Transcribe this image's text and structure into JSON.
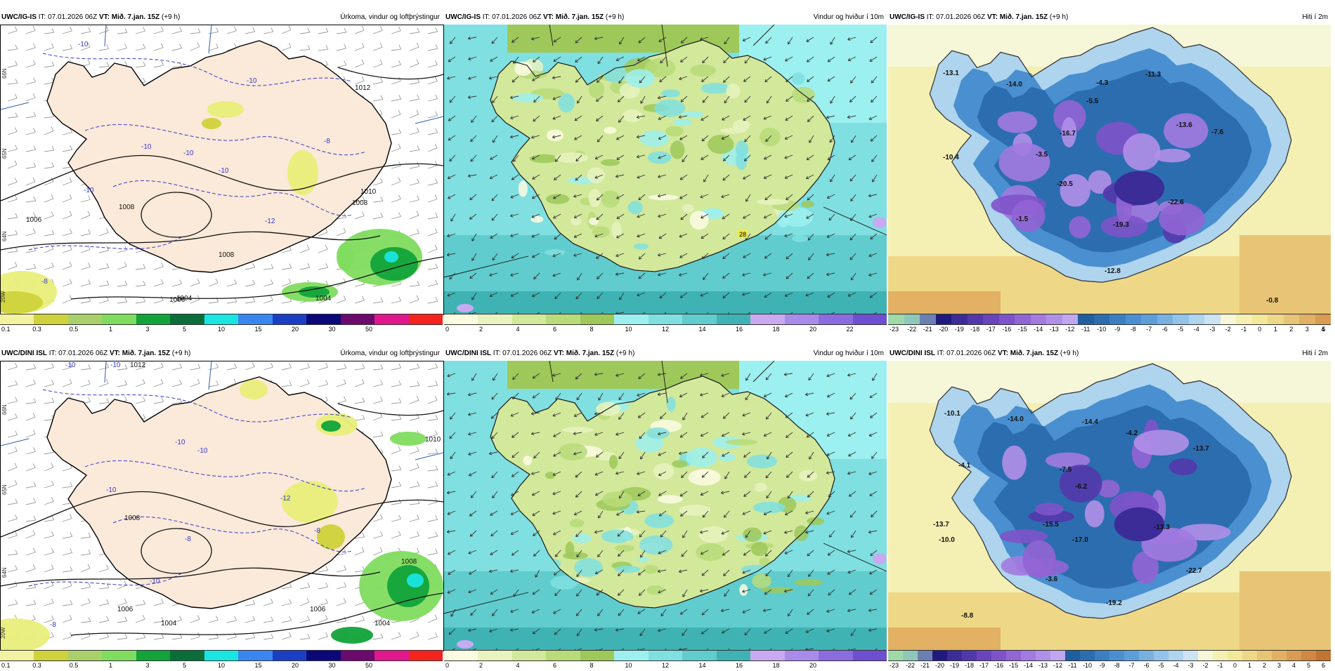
{
  "panels": [
    {
      "id": "precip-igis",
      "model": "UWC/IG-IS",
      "it_label": "IT: 07.01.2026 06Z",
      "vt_label": "VT: Mið. 7.jan. 15Z",
      "lead": "(+9 h)",
      "field_title": "Úrkoma, vindur og loftþrýstingur",
      "kind": "precip",
      "legend_colors": [
        "#f2f2a0",
        "#cfd23a",
        "#a9d06a",
        "#7fdc5f",
        "#12a33a",
        "#0b6e3a",
        "#19e6e1",
        "#3a86f0",
        "#1a3fc4",
        "#0b087a",
        "#6c0a6d",
        "#e0188c",
        "#f5231e"
      ],
      "legend_ticks": [
        "0.1",
        "0.3",
        "0.5",
        "1",
        "3",
        "5",
        "10",
        "15",
        "20",
        "30",
        "50"
      ],
      "map_labels": [
        "-10",
        "-10",
        "-10",
        "-8",
        "-12",
        "-8",
        "-10",
        "-10",
        "1012",
        "1008",
        "1006",
        "1008",
        "1004",
        "1004",
        "1008",
        "1006",
        "1010",
        "66N",
        "64N",
        "65N",
        "20W",
        "-10"
      ]
    },
    {
      "id": "wind-igis",
      "model": "UWC/IG-IS",
      "it_label": "IT: 07.01.2026 06Z",
      "vt_label": "VT: Mið. 7.jan. 15Z",
      "lead": "(+9 h)",
      "field_title": "Vindur og hviður í 10m",
      "kind": "wind",
      "legend_colors": [
        "#fbfbe2",
        "#e8f3bf",
        "#d2e89b",
        "#b9db79",
        "#9ec85a",
        "#9cf0ef",
        "#80dfe0",
        "#60cccd",
        "#3fb3b4",
        "#c9a9f2",
        "#a98bea",
        "#8a6cde",
        "#6e4fd2"
      ],
      "legend_ticks": [
        "0",
        "2",
        "4",
        "6",
        "8",
        "10",
        "12",
        "14",
        "16",
        "18",
        "20",
        "22"
      ],
      "map_labels": [
        "28"
      ]
    },
    {
      "id": "temp-igis",
      "model": "UWC/IG-IS",
      "it_label": "IT: 07.01.2026 06Z",
      "vt_label": "VT: Mið. 7.jan. 15Z",
      "lead": "(+9 h)",
      "field_title": "Hiti í 2m",
      "kind": "temp",
      "legend_colors": [
        "#9fd9a5",
        "#8ec8b8",
        "#6c7fb2",
        "#211a7e",
        "#3b2c97",
        "#5237aa",
        "#6a44bc",
        "#7e53c9",
        "#9264d4",
        "#a27ae0",
        "#b08fe8",
        "#c0a6ef",
        "#1f5f9e",
        "#2c6db0",
        "#3a7fc2",
        "#4a8fcf",
        "#5e9ed8",
        "#78b0e0",
        "#93c3e8",
        "#aed4ee",
        "#cbe3f2",
        "#f6f6d8",
        "#f4efb3",
        "#f2e89a",
        "#eed888",
        "#e8c576",
        "#e2b163",
        "#d99c52"
      ],
      "legend_ticks": [
        "-23",
        "-22",
        "-21",
        "-20",
        "-19",
        "-18",
        "-17",
        "-16",
        "-15",
        "-14",
        "-13",
        "-12",
        "-11",
        "-10",
        "-9",
        "-8",
        "-7",
        "-6",
        "-5",
        "-4",
        "-3",
        "-2",
        "-1",
        "0",
        "1",
        "2",
        "3",
        "4",
        "5"
      ],
      "map_labels": [
        "-13.1",
        "-14.0",
        "-4.3",
        "-11.3",
        "-5.5",
        "-13.6",
        "-7.6",
        "-16.7",
        "-10.4",
        "-3.5",
        "-20.5",
        "-22.6",
        "-1.5",
        "-19.3",
        "-12.8",
        "-0.8"
      ]
    },
    {
      "id": "precip-dini",
      "model": "UWC/DINI ISL",
      "it_label": "IT: 07.01.2026 06Z",
      "vt_label": "VT: Mið. 7.jan. 15Z",
      "lead": "(+9 h)",
      "field_title": "Úrkoma, vindur og loftþrýstingur",
      "kind": "precip",
      "legend_colors": [
        "#f2f2a0",
        "#cfd23a",
        "#a9d06a",
        "#7fdc5f",
        "#12a33a",
        "#0b6e3a",
        "#19e6e1",
        "#3a86f0",
        "#1a3fc4",
        "#0b087a",
        "#6c0a6d",
        "#e0188c",
        "#f5231e"
      ],
      "legend_ticks": [
        "0.1",
        "0.3",
        "0.5",
        "1",
        "3",
        "5",
        "10",
        "15",
        "20",
        "30",
        "50"
      ],
      "map_labels": [
        "-10",
        "-10",
        "1012",
        "-10",
        "-10",
        "-10",
        "-8",
        "-12",
        "-8",
        "-10",
        "1010",
        "1008",
        "1006",
        "1006",
        "1004",
        "1004",
        "1008",
        "66N",
        "64N",
        "65N",
        "20W",
        "-8"
      ]
    },
    {
      "id": "wind-dini",
      "model": "UWC/DINI ISL",
      "it_label": "IT: 07.01.2026 06Z",
      "vt_label": "VT: Mið. 7.jan. 15Z",
      "lead": "(+9 h)",
      "field_title": "Vindur og hviður í 10m",
      "kind": "wind",
      "legend_colors": [
        "#fbfbe2",
        "#e8f3bf",
        "#d2e89b",
        "#b9db79",
        "#9ec85a",
        "#9cf0ef",
        "#80dfe0",
        "#60cccd",
        "#3fb3b4",
        "#c9a9f2",
        "#a98bea",
        "#8a6cde",
        "#6e4fd2"
      ],
      "legend_ticks": [
        "0",
        "2",
        "4",
        "6",
        "8",
        "10",
        "12",
        "14",
        "16",
        "18",
        "20"
      ],
      "map_labels": []
    },
    {
      "id": "temp-dini",
      "model": "UWC/DINI ISL",
      "it_label": "IT: 07.01.2026 06Z",
      "vt_label": "VT: Mið. 7.jan. 15Z",
      "lead": "(+9 h)",
      "field_title": "Hiti í 2m",
      "kind": "temp",
      "legend_colors": [
        "#9fd9a5",
        "#8ec8b8",
        "#6c7fb2",
        "#211a7e",
        "#3b2c97",
        "#5237aa",
        "#6a44bc",
        "#7e53c9",
        "#9264d4",
        "#a27ae0",
        "#b08fe8",
        "#c0a6ef",
        "#1f5f9e",
        "#2c6db0",
        "#3a7fc2",
        "#4a8fcf",
        "#5e9ed8",
        "#78b0e0",
        "#93c3e8",
        "#aed4ee",
        "#cbe3f2",
        "#f6f6d8",
        "#f4efb3",
        "#f2e89a",
        "#eed888",
        "#e8c576",
        "#e2b163",
        "#d99c52",
        "#cf8845",
        "#c07533"
      ],
      "legend_ticks": [
        "-23",
        "-22",
        "-21",
        "-20",
        "-19",
        "-18",
        "-17",
        "-16",
        "-15",
        "-14",
        "-13",
        "-12",
        "-11",
        "-10",
        "-9",
        "-8",
        "-7",
        "-6",
        "-5",
        "-4",
        "-3",
        "-2",
        "-1",
        "0",
        "1",
        "2",
        "3",
        "4",
        "5",
        "6"
      ],
      "map_labels": [
        "-10.1",
        "-14.0",
        "-14.4",
        "-4.2",
        "-13.7",
        "-4.1",
        "-7.5",
        "-6.2",
        "-13.7",
        "-15.5",
        "-10.0",
        "-17.0",
        "-13.3",
        "-22.7",
        "-3.6",
        "-19.2",
        "-8.8"
      ]
    }
  ]
}
